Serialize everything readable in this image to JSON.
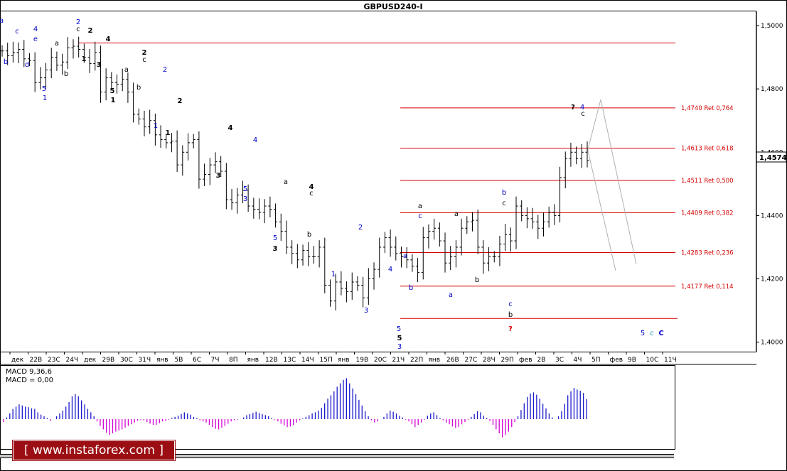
{
  "window": {
    "symbol_title": "GBPUSD240-I",
    "last_price": "1,4574"
  },
  "price_axis": {
    "labels": [
      "1,5000",
      "1,4800",
      "1,4600",
      "1,4400",
      "1,4200",
      "1,4000"
    ],
    "values": [
      1.5,
      1.48,
      1.46,
      1.44,
      1.42,
      1.4
    ],
    "range": [
      1.397,
      1.5045
    ]
  },
  "time_axis": {
    "labels": [
      "дек",
      "22В",
      "23С",
      "24Ч",
      "дек",
      "29В",
      "30С",
      "31Ч",
      "янв",
      "5В",
      "6С",
      "7Ч",
      "8П",
      "янв",
      "12В",
      "13С",
      "14Ч",
      "15П",
      "янв",
      "19В",
      "20С",
      "21Ч",
      "22П",
      "янв",
      "26В",
      "27С",
      "28Ч",
      "29П",
      "фев",
      "2В",
      "3С",
      "4Ч",
      "5П",
      "фев",
      "9В",
      "10С",
      "11Ч"
    ]
  },
  "fib_levels": [
    {
      "price": 1.4945,
      "label": ""
    },
    {
      "price": 1.474,
      "label": "1,4740 Ret 0,764"
    },
    {
      "price": 1.4613,
      "label": "1,4613 Ret 0,618"
    },
    {
      "price": 1.4511,
      "label": "1,4511 Ret 0,500"
    },
    {
      "price": 1.4409,
      "label": "1,4409 Ret 0,382"
    },
    {
      "price": 1.4283,
      "label": "1,4283 Ret 0,236"
    },
    {
      "price": 1.4177,
      "label": "1,4177 Ret 0,114"
    },
    {
      "price": 1.4075,
      "label": ""
    }
  ],
  "chart_data": {
    "type": "candlestick",
    "title": "GBPUSD240-I",
    "ylim": [
      1.397,
      1.5045
    ],
    "price_series": [
      1.492,
      1.4905,
      1.4915,
      1.4925,
      1.4895,
      1.489,
      1.482,
      1.4835,
      1.486,
      1.49,
      1.4875,
      1.4885,
      1.493,
      1.4935,
      1.4925,
      1.49,
      1.488,
      1.4915,
      1.479,
      1.4835,
      1.482,
      1.4815,
      1.483,
      1.479,
      1.472,
      1.4705,
      1.468,
      1.47,
      1.4655,
      1.464,
      1.463,
      1.4635,
      1.456,
      1.46,
      1.463,
      1.464,
      1.4515,
      1.453,
      1.456,
      1.457,
      1.454,
      1.445,
      1.444,
      1.4465,
      1.448,
      1.443,
      1.442,
      1.441,
      1.443,
      1.442,
      1.438,
      1.435,
      1.43,
      1.428,
      1.426,
      1.429,
      1.427,
      1.427,
      1.43,
      1.418,
      1.413,
      1.419,
      1.417,
      1.416,
      1.419,
      1.418,
      1.414,
      1.42,
      1.423,
      1.43,
      1.433,
      1.43,
      1.428,
      1.427,
      1.426,
      1.424,
      1.422,
      1.433,
      1.435,
      1.436,
      1.432,
      1.425,
      1.427,
      1.43,
      1.436,
      1.438,
      1.4385,
      1.43,
      1.425,
      1.427,
      1.427,
      1.431,
      1.434,
      1.432,
      1.443,
      1.44,
      1.439,
      1.438,
      1.436,
      1.438,
      1.441,
      1.44,
      1.452,
      1.458,
      1.46,
      1.458,
      1.46,
      1.4574
    ],
    "annotations_text": [
      "a",
      "b",
      "c",
      "d",
      "e",
      "4",
      "2",
      "1",
      "3",
      "5",
      "?"
    ],
    "projection_lines": [
      {
        "from_index": 107,
        "from_price": 1.4574,
        "to_index": 118,
        "to_price": 1.423
      },
      {
        "from_index": 109,
        "from_price": 1.475,
        "to_index": 120,
        "to_price": 1.424
      }
    ]
  },
  "wave_labels": [
    {
      "t": "a",
      "x": 2,
      "y": 32,
      "c": "blue"
    },
    {
      "t": "c",
      "x": 24,
      "y": 47,
      "c": "blue"
    },
    {
      "t": "4",
      "x": 50,
      "y": 44,
      "c": "blue"
    },
    {
      "t": "e",
      "x": 50,
      "y": 58,
      "c": "blue"
    },
    {
      "t": "b",
      "x": 8,
      "y": 90,
      "c": "blue"
    },
    {
      "t": "d",
      "x": 38,
      "y": 94,
      "c": "blue"
    },
    {
      "t": "5",
      "x": 62,
      "y": 128,
      "c": "blue"
    },
    {
      "t": "1",
      "x": 63,
      "y": 141,
      "c": "blue"
    },
    {
      "t": "2",
      "x": 110,
      "y": 34,
      "c": "blue"
    },
    {
      "t": "c",
      "x": 110,
      "y": 44,
      "c": "black"
    },
    {
      "t": "2",
      "x": 127,
      "y": 46,
      "c": "black"
    },
    {
      "t": "4",
      "x": 152,
      "y": 58,
      "c": "black"
    },
    {
      "t": "a",
      "x": 80,
      "y": 64,
      "c": "black"
    },
    {
      "t": "b",
      "x": 93,
      "y": 107,
      "c": "black"
    },
    {
      "t": "1",
      "x": 118,
      "y": 86,
      "c": "black"
    },
    {
      "t": "3",
      "x": 139,
      "y": 94,
      "c": "black"
    },
    {
      "t": "2",
      "x": 203,
      "y": 77,
      "c": "black"
    },
    {
      "t": "a",
      "x": 178,
      "y": 101,
      "c": "black"
    },
    {
      "t": "c",
      "x": 203,
      "y": 87,
      "c": "black"
    },
    {
      "t": "5",
      "x": 158,
      "y": 131,
      "c": "black"
    },
    {
      "t": "1",
      "x": 159,
      "y": 144,
      "c": "black"
    },
    {
      "t": "b",
      "x": 195,
      "y": 126,
      "c": "black"
    },
    {
      "t": "2",
      "x": 232,
      "y": 101,
      "c": "blue"
    },
    {
      "t": "2",
      "x": 253,
      "y": 145,
      "c": "black"
    },
    {
      "t": "1",
      "x": 219,
      "y": 180,
      "c": "blue"
    },
    {
      "t": "1",
      "x": 236,
      "y": 190,
      "c": "black"
    },
    {
      "t": "4",
      "x": 324,
      "y": 183,
      "c": "black"
    },
    {
      "t": "4",
      "x": 359,
      "y": 200,
      "c": "blue"
    },
    {
      "t": "3",
      "x": 307,
      "y": 250,
      "c": "black"
    },
    {
      "t": "5",
      "x": 345,
      "y": 269,
      "c": "blue"
    },
    {
      "t": "3",
      "x": 345,
      "y": 283,
      "c": "blue"
    },
    {
      "t": "a",
      "x": 402,
      "y": 259,
      "c": "black"
    },
    {
      "t": "4",
      "x": 438,
      "y": 266,
      "c": "black"
    },
    {
      "t": "c",
      "x": 438,
      "y": 275,
      "c": "black"
    },
    {
      "t": "b",
      "x": 435,
      "y": 333,
      "c": "black"
    },
    {
      "t": "5",
      "x": 387,
      "y": 338,
      "c": "blue"
    },
    {
      "t": "3",
      "x": 387,
      "y": 353,
      "c": "black"
    },
    {
      "t": "2",
      "x": 507,
      "y": 323,
      "c": "blue"
    },
    {
      "t": "1",
      "x": 469,
      "y": 389,
      "c": "blue"
    },
    {
      "t": "4",
      "x": 549,
      "y": 382,
      "c": "blue"
    },
    {
      "t": "3",
      "x": 515,
      "y": 440,
      "c": "blue"
    },
    {
      "t": "a",
      "x": 570,
      "y": 363,
      "c": "blue"
    },
    {
      "t": "b",
      "x": 578,
      "y": 408,
      "c": "blue"
    },
    {
      "t": "5",
      "x": 561,
      "y": 466,
      "c": "blue"
    },
    {
      "t": "5",
      "x": 562,
      "y": 479,
      "c": "black"
    },
    {
      "t": "3",
      "x": 562,
      "y": 491,
      "c": "blue"
    },
    {
      "t": "a",
      "x": 591,
      "y": 293,
      "c": "black"
    },
    {
      "t": "c",
      "x": 591,
      "y": 307,
      "c": "blue"
    },
    {
      "t": "a",
      "x": 642,
      "y": 304,
      "c": "black"
    },
    {
      "t": "a",
      "x": 634,
      "y": 418,
      "c": "blue"
    },
    {
      "t": "b",
      "x": 671,
      "y": 397,
      "c": "black"
    },
    {
      "t": "b",
      "x": 709,
      "y": 274,
      "c": "blue"
    },
    {
      "t": "c",
      "x": 709,
      "y": 289,
      "c": "black"
    },
    {
      "t": "c",
      "x": 718,
      "y": 431,
      "c": "blue"
    },
    {
      "t": "b",
      "x": 718,
      "y": 446,
      "c": "black"
    },
    {
      "t": "?",
      "x": 718,
      "y": 466,
      "c": "red"
    },
    {
      "t": "?",
      "x": 806,
      "y": 154,
      "c": "black"
    },
    {
      "t": "4",
      "x": 819,
      "y": 154,
      "c": "blue"
    },
    {
      "t": "c",
      "x": 820,
      "y": 163,
      "c": "black"
    },
    {
      "t": "5",
      "x": 904,
      "y": 472,
      "c": "blue"
    },
    {
      "t": "c",
      "x": 917,
      "y": 472,
      "c": "teal"
    },
    {
      "t": "C",
      "x": 930,
      "y": 472,
      "c": "blue"
    }
  ],
  "macd": {
    "label1": "MACD 9,36,6",
    "label2": "MACD = 0,00",
    "values": [
      -5,
      3,
      10,
      18,
      22,
      26,
      24,
      22,
      21,
      19,
      18,
      12,
      8,
      5,
      2,
      -3,
      0,
      5,
      10,
      15,
      22,
      30,
      40,
      44,
      40,
      33,
      26,
      18,
      12,
      5,
      -4,
      -12,
      -18,
      -24,
      -28,
      -25,
      -22,
      -20,
      -18,
      -15,
      -12,
      -9,
      -6,
      -3,
      -1,
      -2,
      -5,
      -8,
      -10,
      -10,
      -7,
      -4,
      -3,
      -1,
      2,
      4,
      6,
      9,
      12,
      10,
      8,
      4,
      2,
      -2,
      -4,
      -6,
      -10,
      -14,
      -17,
      -18,
      -15,
      -12,
      -8,
      -4,
      -2,
      -1,
      0,
      3,
      7,
      9,
      11,
      13,
      11,
      9,
      7,
      5,
      2,
      -1,
      -4,
      -8,
      -11,
      -14,
      -13,
      -10,
      -6,
      -2,
      1,
      4,
      7,
      10,
      12,
      15,
      20,
      28,
      36,
      42,
      49,
      57,
      63,
      69,
      72,
      63,
      54,
      44,
      34,
      24,
      14,
      5,
      -2,
      -6,
      -4,
      0,
      4,
      10,
      15,
      13,
      10,
      6,
      3,
      -1,
      -4,
      -9,
      -14,
      -10,
      -6,
      -1,
      6,
      10,
      12,
      7,
      2,
      -2,
      -6,
      -9,
      -13,
      -15,
      -14,
      -9,
      -5,
      -1,
      4,
      9,
      14,
      12,
      6,
      2,
      -3,
      -10,
      -18,
      -25,
      -32,
      -28,
      -22,
      -14,
      -5,
      5,
      16,
      28,
      39,
      45,
      47,
      43,
      36,
      27,
      19,
      10,
      3,
      0,
      5,
      14,
      27,
      42,
      49,
      55,
      52,
      50,
      46,
      35
    ]
  },
  "logo": {
    "text": "[ www.instaforex.com ]"
  },
  "colors": {
    "fib_line": "#d40000",
    "wave_blue": "#0000c8",
    "wave_black": "#000000",
    "macd_pos": "#1a1acc",
    "macd_neg": "#d400d4",
    "logo_bg": "#9b0f14"
  }
}
